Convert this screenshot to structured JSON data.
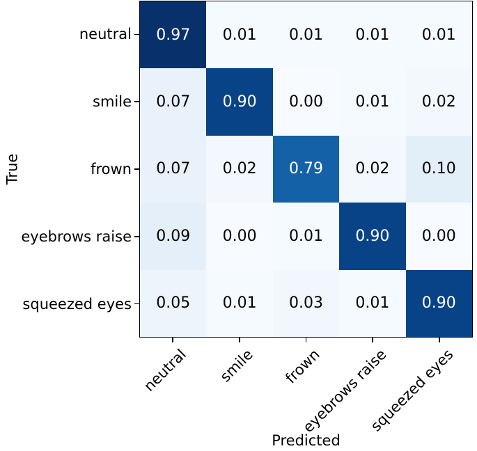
{
  "chart_data": {
    "type": "heatmap",
    "subtype": "confusion-matrix",
    "title": "",
    "xlabel": "Predicted",
    "ylabel": "True",
    "x_categories": [
      "neutral",
      "smile",
      "frown",
      "eyebrows raise",
      "squeezed eyes"
    ],
    "y_categories": [
      "neutral",
      "smile",
      "frown",
      "eyebrows raise",
      "squeezed eyes"
    ],
    "matrix": [
      [
        0.97,
        0.01,
        0.01,
        0.01,
        0.01
      ],
      [
        0.07,
        0.9,
        0.0,
        0.01,
        0.02
      ],
      [
        0.07,
        0.02,
        0.79,
        0.02,
        0.1
      ],
      [
        0.09,
        0.0,
        0.01,
        0.9,
        0.0
      ],
      [
        0.05,
        0.01,
        0.03,
        0.01,
        0.9
      ]
    ],
    "decimals": 2,
    "vmin": 0.0,
    "vmax": 0.97,
    "text_threshold": 0.485,
    "legend": "none",
    "grid": false,
    "colors": {
      "background": "#ffffff",
      "axis_border": "#000000",
      "tick": "#000000",
      "cell_text_dark": "#000000",
      "cell_text_light": "#ffffff"
    },
    "colormap": {
      "name": "Blues",
      "anchors": [
        {
          "t": 0.0,
          "rgb": [
            247,
            251,
            255
          ]
        },
        {
          "t": 0.125,
          "rgb": [
            222,
            235,
            247
          ]
        },
        {
          "t": 0.25,
          "rgb": [
            198,
            219,
            239
          ]
        },
        {
          "t": 0.375,
          "rgb": [
            158,
            202,
            225
          ]
        },
        {
          "t": 0.5,
          "rgb": [
            107,
            174,
            214
          ]
        },
        {
          "t": 0.625,
          "rgb": [
            66,
            146,
            198
          ]
        },
        {
          "t": 0.75,
          "rgb": [
            33,
            113,
            181
          ]
        },
        {
          "t": 0.875,
          "rgb": [
            8,
            81,
            156
          ]
        },
        {
          "t": 1.0,
          "rgb": [
            8,
            48,
            107
          ]
        }
      ]
    }
  }
}
